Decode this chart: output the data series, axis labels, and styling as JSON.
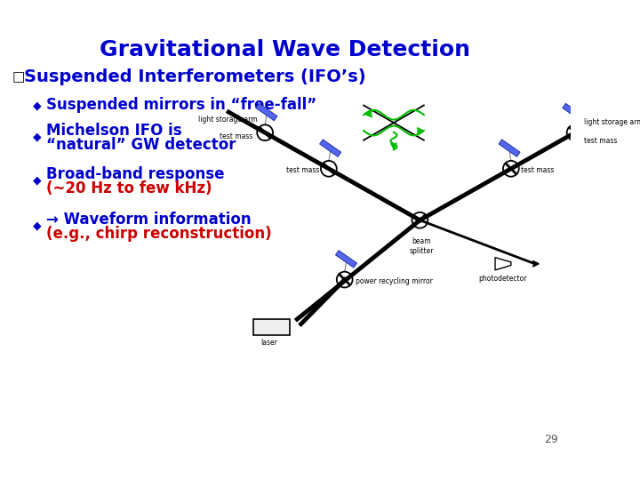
{
  "title": "Gravitational Wave Detection",
  "title_color": "#0000CC",
  "title_fontsize": 18,
  "bg_color": "#FFFFFF",
  "bullet_color": "#0000CC",
  "red_color": "#CC0000",
  "bullet1": "Suspended mirrors in “free-fall”",
  "bullet2_line1": "Michelson IFO is",
  "bullet2_line2": "“natural” GW detector",
  "bullet3_line1": "Broad-band response",
  "bullet3_line2": "(~20 Hz to few kHz)",
  "bullet4_line1": "→ Waveform information",
  "bullet4_line2": "(e.g., chirp reconstruction)",
  "main_bullet": "Suspended Interferometers (IFO’s)",
  "page_number": "29"
}
